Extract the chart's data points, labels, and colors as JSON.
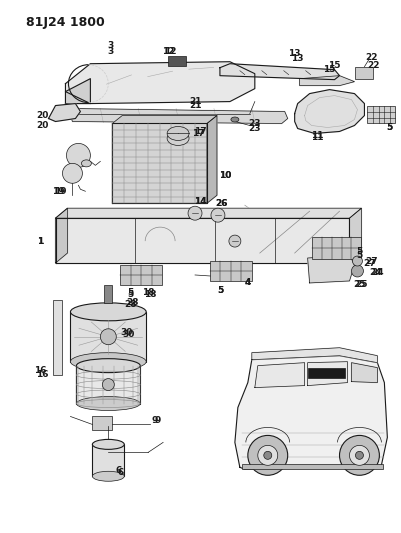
{
  "title": "81J24 1800",
  "bg_color": "#ffffff",
  "line_color": "#1a1a1a",
  "fig_width": 4.01,
  "fig_height": 5.33,
  "dpi": 100,
  "title_fs": 9,
  "label_fs": 6.5
}
